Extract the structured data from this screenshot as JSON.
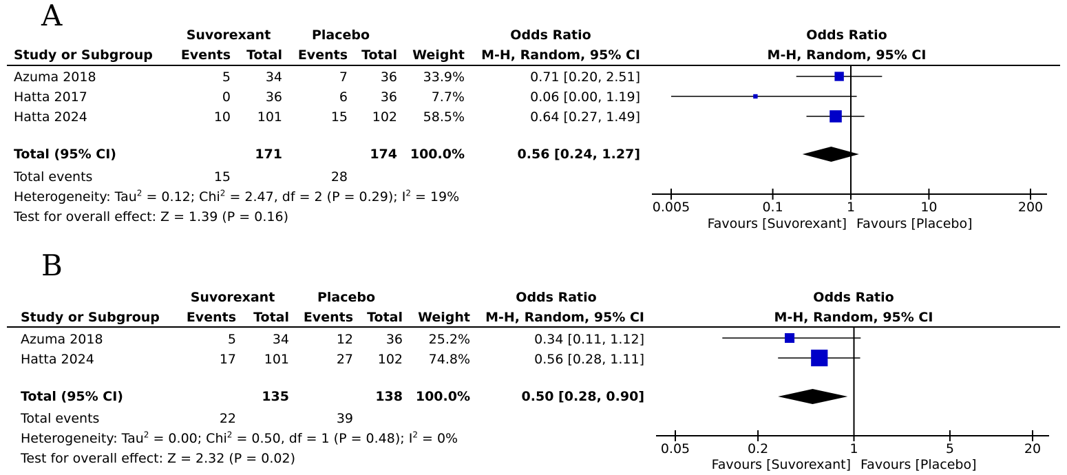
{
  "chart_data": [
    {
      "type": "forest",
      "panel": "A",
      "columns": {
        "study": "Study or Subgroup",
        "group1": "Suvorexant",
        "group2": "Placebo",
        "events": "Events",
        "total": "Total",
        "weight": "Weight",
        "or_title": "Odds Ratio",
        "or_method": "M-H, Random, 95% CI"
      },
      "studies": [
        {
          "name": "Azuma 2018",
          "e1": "5",
          "t1": "34",
          "e2": "7",
          "t2": "36",
          "weight": "33.9%",
          "ci_text": "0.71 [0.20, 2.51]",
          "or": 0.71,
          "lo": 0.2,
          "hi": 2.51
        },
        {
          "name": "Hatta 2017",
          "e1": "0",
          "t1": "36",
          "e2": "6",
          "t2": "36",
          "weight": "7.7%",
          "ci_text": "0.06 [0.00, 1.19]",
          "or": 0.06,
          "lo": 0.0,
          "hi": 1.19
        },
        {
          "name": "Hatta 2024",
          "e1": "10",
          "t1": "101",
          "e2": "15",
          "t2": "102",
          "weight": "58.5%",
          "ci_text": "0.64 [0.27, 1.49]",
          "or": 0.64,
          "lo": 0.27,
          "hi": 1.49
        }
      ],
      "total": {
        "label": "Total (95% CI)",
        "t1": "171",
        "t2": "174",
        "weight": "100.0%",
        "ci_text": "0.56 [0.24, 1.27]",
        "or": 0.56,
        "lo": 0.24,
        "hi": 1.27
      },
      "total_events": {
        "label": "Total events",
        "e1": "15",
        "e2": "28"
      },
      "heterogeneity": {
        "prefix": "Heterogeneity: Tau",
        "tau2": " = 0.12; Chi",
        "chi2": " = 2.47, df = 2 (P = 0.29); I",
        "i2": " = 19%"
      },
      "overall": "Test for overall effect: Z = 1.39 (P = 0.16)",
      "axis": {
        "scale": "log",
        "min": 0.005,
        "max": 200,
        "ticks": [
          0.005,
          0.1,
          1,
          10,
          200
        ],
        "tick_labels": [
          "0.005",
          "0.1",
          "1",
          "10",
          "200"
        ]
      },
      "favours_left": "Favours [Suvorexant]",
      "favours_right": "Favours [Placebo]",
      "marker_color": "#0000c8"
    },
    {
      "type": "forest",
      "panel": "B",
      "columns": {
        "study": "Study or Subgroup",
        "group1": "Suvorexant",
        "group2": "Placebo",
        "events": "Events",
        "total": "Total",
        "weight": "Weight",
        "or_title": "Odds Ratio",
        "or_method": "M-H, Random, 95% CI"
      },
      "studies": [
        {
          "name": "Azuma 2018",
          "e1": "5",
          "t1": "34",
          "e2": "12",
          "t2": "36",
          "weight": "25.2%",
          "ci_text": "0.34 [0.11, 1.12]",
          "or": 0.34,
          "lo": 0.11,
          "hi": 1.12
        },
        {
          "name": "Hatta 2024",
          "e1": "17",
          "t1": "101",
          "e2": "27",
          "t2": "102",
          "weight": "74.8%",
          "ci_text": "0.56 [0.28, 1.11]",
          "or": 0.56,
          "lo": 0.28,
          "hi": 1.11
        }
      ],
      "total": {
        "label": "Total (95% CI)",
        "t1": "135",
        "t2": "138",
        "weight": "100.0%",
        "ci_text": "0.50 [0.28, 0.90]",
        "or": 0.5,
        "lo": 0.28,
        "hi": 0.9
      },
      "total_events": {
        "label": "Total events",
        "e1": "22",
        "e2": "39"
      },
      "heterogeneity": {
        "prefix": "Heterogeneity: Tau",
        "tau2": " = 0.00; Chi",
        "chi2": " = 0.50, df = 1 (P = 0.48); I",
        "i2": " = 0%"
      },
      "overall": "Test for overall effect: Z = 2.32 (P = 0.02)",
      "axis": {
        "scale": "log",
        "min": 0.05,
        "max": 20,
        "ticks": [
          0.05,
          0.2,
          1,
          5,
          20
        ],
        "tick_labels": [
          "0.05",
          "0.2",
          "1",
          "5",
          "20"
        ]
      },
      "favours_left": "Favours [Suvorexant]",
      "favours_right": "Favours [Placebo]",
      "marker_color": "#0000c8"
    }
  ]
}
